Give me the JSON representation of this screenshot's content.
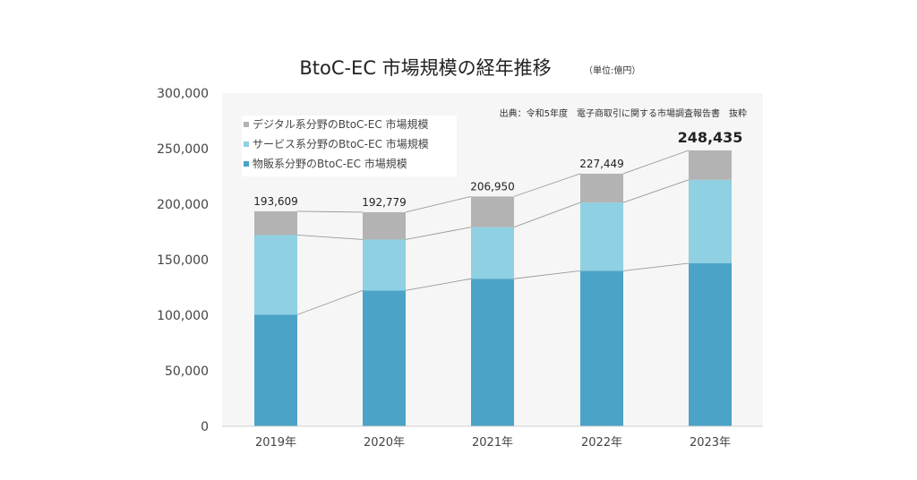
{
  "chart_data": {
    "type": "bar",
    "stacked": true,
    "title": "BtoC-EC 市場規模の経年推移",
    "unit": "（単位:億円）",
    "source": "出典：令和5年度　電子商取引に関する市場調査報告書　抜粋",
    "categories": [
      "2019年",
      "2020年",
      "2021年",
      "2022年",
      "2023年"
    ],
    "series": [
      {
        "name": "物販系分野のBtoC-EC 市場規模",
        "color": "#4ba3c7",
        "values": [
          100515,
          122333,
          132865,
          139997,
          146760
        ]
      },
      {
        "name": "サービス系分野のBtoC-EC 市場規模",
        "color": "#8fd0e2",
        "values": [
          71672,
          45832,
          46424,
          61477,
          75169
        ]
      },
      {
        "name": "デジタル系分野のBtoC-EC 市場規模",
        "color": "#b3b3b3",
        "values": [
          21422,
          24614,
          27661,
          25975,
          26506
        ]
      }
    ],
    "totals": [
      "193,609",
      "192,779",
      "206,950",
      "227,449",
      "248,435"
    ],
    "totals_numeric": [
      193609,
      192779,
      206950,
      227449,
      248435
    ],
    "y_ticks": [
      "0",
      "50,000",
      "100,000",
      "150,000",
      "200,000",
      "250,000",
      "300,000"
    ],
    "ylim": [
      0,
      300000
    ],
    "legend_position": "top-left",
    "connector_lines": true,
    "plot_background": "#f6f6f6"
  }
}
